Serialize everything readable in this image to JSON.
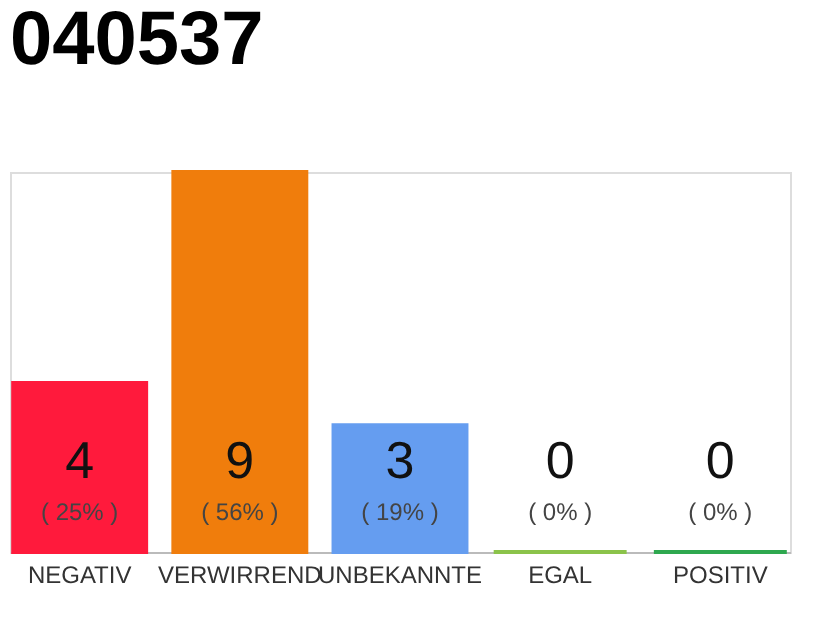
{
  "chart_data": {
    "type": "bar",
    "title": "040537",
    "categories": [
      "NEGATIV",
      "VERWIRREND",
      "UNBEKANNTE",
      "EGAL",
      "POSITIV"
    ],
    "values": [
      4,
      9,
      3,
      0,
      0
    ],
    "colors": [
      "#ff1a3c",
      "#f07d0c",
      "#659df0",
      "#8bc34a",
      "#2ea84f"
    ],
    "data_labels": true,
    "annotations": [
      "( 25% )",
      "( 56% )",
      "( 19% )",
      "( 0% )",
      "( 0% )"
    ]
  }
}
